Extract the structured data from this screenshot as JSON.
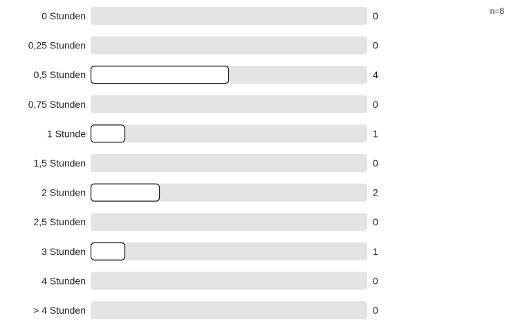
{
  "n_label": "n=8",
  "colors": {
    "track": "#e3e3e3",
    "bar_fill": "#ffffff",
    "bar_stroke": "#222222",
    "text": "#222222"
  },
  "chart_data": {
    "type": "bar",
    "orientation": "horizontal",
    "categories": [
      "0 Stunden",
      "0,25 Stunden",
      "0,5 Stunden",
      "0,75 Stunden",
      "1 Stunde",
      "1,5 Stunden",
      "2 Stunden",
      "2,5 Stunden",
      "3 Stunden",
      "4 Stunden",
      "> 4 Stunden"
    ],
    "values": [
      0,
      0,
      4,
      0,
      1,
      0,
      2,
      0,
      1,
      0,
      0
    ],
    "xlim": [
      0,
      8
    ],
    "title": "",
    "xlabel": "",
    "ylabel": "",
    "grid": false,
    "legend": "none"
  }
}
